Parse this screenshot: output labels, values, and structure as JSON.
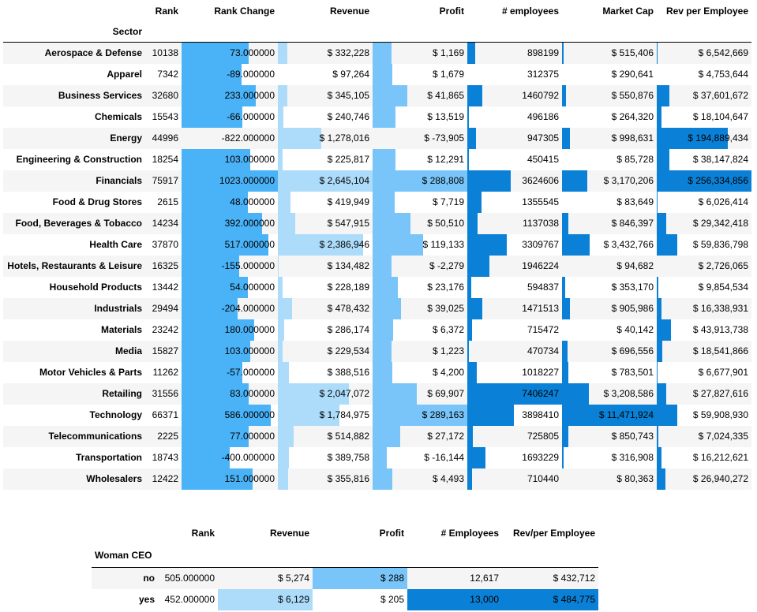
{
  "sectors_table": {
    "index_label": "Sector",
    "columns": [
      "Rank",
      "Rank Change",
      "Revenue",
      "Profit",
      "# employees",
      "Market Cap",
      "Rev per Employee"
    ],
    "bar_colors": {
      "rank_change": "#4ab2f7",
      "revenue": "#addcfb",
      "profit": "#79c5f9",
      "employees": "#0a81d6",
      "market_cap": "#0a81d6",
      "rev_per_employee": "#0a81d6"
    },
    "rows": [
      {
        "sector": "Aerospace & Defense",
        "rank": "10138",
        "rank_change": "73.000000",
        "revenue": "$ 332,228",
        "profit": "$ 1,169",
        "employees": "898199",
        "market_cap": "$ 515,406",
        "rev_per_employee": "$ 6,542,669",
        "bars": {
          "rank_change": 0.7,
          "revenue": 0.1,
          "profit": 0.2,
          "employees": 0.08,
          "market_cap": 0.02,
          "rev_per_employee": 0.01
        }
      },
      {
        "sector": "Apparel",
        "rank": "7342",
        "rank_change": "-89.000000",
        "revenue": "$ 97,264",
        "profit": "$ 1,679",
        "employees": "312375",
        "market_cap": "$ 290,641",
        "rev_per_employee": "$ 4,753,644",
        "bars": {
          "rank_change": 0.62,
          "revenue": 0.0,
          "profit": 0.21,
          "employees": 0.0,
          "market_cap": 0.0,
          "rev_per_employee": 0.0
        }
      },
      {
        "sector": "Business Services",
        "rank": "32680",
        "rank_change": "233.000000",
        "revenue": "$ 345,105",
        "profit": "$ 41,865",
        "employees": "1460792",
        "market_cap": "$ 550,876",
        "rev_per_employee": "$ 37,601,672",
        "bars": {
          "rank_change": 0.77,
          "revenue": 0.1,
          "profit": 0.37,
          "employees": 0.16,
          "market_cap": 0.04,
          "rev_per_employee": 0.13
        }
      },
      {
        "sector": "Chemicals",
        "rank": "15543",
        "rank_change": "-66.000000",
        "revenue": "$ 240,746",
        "profit": "$ 13,519",
        "employees": "496186",
        "market_cap": "$ 264,320",
        "rev_per_employee": "$ 18,104,647",
        "bars": {
          "rank_change": 0.63,
          "revenue": 0.06,
          "profit": 0.24,
          "employees": 0.02,
          "market_cap": 0.0,
          "rev_per_employee": 0.05
        }
      },
      {
        "sector": "Energy",
        "rank": "44996",
        "rank_change": "-822.000000",
        "revenue": "$ 1,278,016",
        "profit": "$ -73,905",
        "employees": "947305",
        "market_cap": "$ 998,631",
        "rev_per_employee": "$ 194,889,434",
        "bars": {
          "rank_change": 0.0,
          "revenue": 0.46,
          "profit": 0.0,
          "employees": 0.09,
          "market_cap": 0.08,
          "rev_per_employee": 0.75
        }
      },
      {
        "sector": "Engineering & Construction",
        "rank": "18254",
        "rank_change": "103.000000",
        "revenue": "$ 225,817",
        "profit": "$ 12,291",
        "employees": "450415",
        "market_cap": "$ 85,728",
        "rev_per_employee": "$ 38,147,824",
        "bars": {
          "rank_change": 0.71,
          "revenue": 0.05,
          "profit": 0.24,
          "employees": 0.02,
          "market_cap": 0.0,
          "rev_per_employee": 0.13
        }
      },
      {
        "sector": "Financials",
        "rank": "75917",
        "rank_change": "1023.000000",
        "revenue": "$ 2,645,104",
        "profit": "$ 288,808",
        "employees": "3624606",
        "market_cap": "$ 3,170,206",
        "rev_per_employee": "$ 256,334,856",
        "bars": {
          "rank_change": 1.0,
          "revenue": 1.0,
          "profit": 1.0,
          "employees": 0.46,
          "market_cap": 0.27,
          "rev_per_employee": 1.0
        }
      },
      {
        "sector": "Food & Drug Stores",
        "rank": "2615",
        "rank_change": "48.000000",
        "revenue": "$ 419,949",
        "profit": "$ 7,719",
        "employees": "1355545",
        "market_cap": "$ 83,649",
        "rev_per_employee": "$ 6,026,414",
        "bars": {
          "rank_change": 0.69,
          "revenue": 0.13,
          "profit": 0.23,
          "employees": 0.15,
          "market_cap": 0.0,
          "rev_per_employee": 0.01
        }
      },
      {
        "sector": "Food, Beverages & Tobacco",
        "rank": "14234",
        "rank_change": "392.000000",
        "revenue": "$ 547,915",
        "profit": "$ 50,510",
        "employees": "1137038",
        "market_cap": "$ 846,397",
        "rev_per_employee": "$ 29,342,418",
        "bars": {
          "rank_change": 0.84,
          "revenue": 0.18,
          "profit": 0.4,
          "employees": 0.11,
          "market_cap": 0.07,
          "rev_per_employee": 0.1
        }
      },
      {
        "sector": "Health Care",
        "rank": "37870",
        "rank_change": "517.000000",
        "revenue": "$ 2,386,946",
        "profit": "$ 119,133",
        "employees": "3309767",
        "market_cap": "$ 3,432,766",
        "rev_per_employee": "$ 59,836,798",
        "bars": {
          "rank_change": 0.9,
          "revenue": 0.9,
          "profit": 0.53,
          "employees": 0.42,
          "market_cap": 0.29,
          "rev_per_employee": 0.22
        }
      },
      {
        "sector": "Hotels, Restaurants & Leisure",
        "rank": "16325",
        "rank_change": "-155.000000",
        "revenue": "$ 134,482",
        "profit": "$ -2,279",
        "employees": "1946224",
        "market_cap": "$ 94,682",
        "rev_per_employee": "$ 2,726,065",
        "bars": {
          "rank_change": 0.6,
          "revenue": 0.01,
          "profit": 0.2,
          "employees": 0.23,
          "market_cap": 0.0,
          "rev_per_employee": 0.0
        }
      },
      {
        "sector": "Household Products",
        "rank": "13442",
        "rank_change": "54.000000",
        "revenue": "$ 228,189",
        "profit": "$ 23,176",
        "employees": "594837",
        "market_cap": "$ 353,170",
        "rev_per_employee": "$ 9,854,534",
        "bars": {
          "rank_change": 0.69,
          "revenue": 0.05,
          "profit": 0.27,
          "employees": 0.04,
          "market_cap": 0.03,
          "rev_per_employee": 0.02
        }
      },
      {
        "sector": "Industrials",
        "rank": "29494",
        "rank_change": "-204.000000",
        "revenue": "$ 478,432",
        "profit": "$ 39,025",
        "employees": "1471513",
        "market_cap": "$ 905,986",
        "rev_per_employee": "$ 16,338,931",
        "bars": {
          "rank_change": 0.58,
          "revenue": 0.15,
          "profit": 0.3,
          "employees": 0.16,
          "market_cap": 0.08,
          "rev_per_employee": 0.05
        }
      },
      {
        "sector": "Materials",
        "rank": "23242",
        "rank_change": "180.000000",
        "revenue": "$ 286,174",
        "profit": "$ 6,372",
        "employees": "715472",
        "market_cap": "$ 40,142",
        "rev_per_employee": "$ 43,913,738",
        "bars": {
          "rank_change": 0.75,
          "revenue": 0.07,
          "profit": 0.22,
          "employees": 0.05,
          "market_cap": 0.0,
          "rev_per_employee": 0.15
        }
      },
      {
        "sector": "Media",
        "rank": "15827",
        "rank_change": "103.000000",
        "revenue": "$ 229,534",
        "profit": "$ 1,223",
        "employees": "470734",
        "market_cap": "$ 696,556",
        "rev_per_employee": "$ 18,541,866",
        "bars": {
          "rank_change": 0.71,
          "revenue": 0.05,
          "profit": 0.2,
          "employees": 0.02,
          "market_cap": 0.06,
          "rev_per_employee": 0.06
        }
      },
      {
        "sector": "Motor Vehicles & Parts",
        "rank": "11262",
        "rank_change": "-57.000000",
        "revenue": "$ 388,516",
        "profit": "$ 4,200",
        "employees": "1018227",
        "market_cap": "$ 783,501",
        "rev_per_employee": "$ 6,677,901",
        "bars": {
          "rank_change": 0.63,
          "revenue": 0.12,
          "profit": 0.21,
          "employees": 0.1,
          "market_cap": 0.07,
          "rev_per_employee": 0.01
        }
      },
      {
        "sector": "Retailing",
        "rank": "31556",
        "rank_change": "83.000000",
        "revenue": "$ 2,047,072",
        "profit": "$ 69,907",
        "employees": "7406247",
        "market_cap": "$ 3,208,586",
        "rev_per_employee": "$ 27,827,616",
        "bars": {
          "rank_change": 0.7,
          "revenue": 0.75,
          "profit": 0.47,
          "employees": 1.0,
          "market_cap": 0.28,
          "rev_per_employee": 0.1
        }
      },
      {
        "sector": "Technology",
        "rank": "66371",
        "rank_change": "586.000000",
        "revenue": "$ 1,784,975",
        "profit": "$ 289,163",
        "employees": "3898410",
        "market_cap": "$ 11,471,924",
        "rev_per_employee": "$ 59,908,930",
        "bars": {
          "rank_change": 0.93,
          "revenue": 0.65,
          "profit": 1.0,
          "employees": 0.49,
          "market_cap": 1.0,
          "rev_per_employee": 0.22
        }
      },
      {
        "sector": "Telecommunications",
        "rank": "2225",
        "rank_change": "77.000000",
        "revenue": "$ 514,882",
        "profit": "$ 27,172",
        "employees": "725805",
        "market_cap": "$ 850,743",
        "rev_per_employee": "$ 7,024,335",
        "bars": {
          "rank_change": 0.7,
          "revenue": 0.17,
          "profit": 0.29,
          "employees": 0.06,
          "market_cap": 0.07,
          "rev_per_employee": 0.02
        }
      },
      {
        "sector": "Transportation",
        "rank": "18743",
        "rank_change": "-400.000000",
        "revenue": "$ 389,758",
        "profit": "$ -16,144",
        "employees": "1693229",
        "market_cap": "$ 316,908",
        "rev_per_employee": "$ 16,212,621",
        "bars": {
          "rank_change": 0.5,
          "revenue": 0.12,
          "profit": 0.15,
          "employees": 0.19,
          "market_cap": 0.02,
          "rev_per_employee": 0.05
        }
      },
      {
        "sector": "Wholesalers",
        "rank": "12422",
        "rank_change": "151.000000",
        "revenue": "$ 355,816",
        "profit": "$ 4,493",
        "employees": "710440",
        "market_cap": "$ 80,363",
        "rev_per_employee": "$ 26,940,272",
        "bars": {
          "rank_change": 0.74,
          "revenue": 0.11,
          "profit": 0.21,
          "employees": 0.05,
          "market_cap": 0.0,
          "rev_per_employee": 0.09
        }
      }
    ]
  },
  "ceo_table": {
    "index_label": "Woman CEO",
    "columns": [
      "Rank",
      "Revenue",
      "Profit",
      "# Employees",
      "Rev/per Employee"
    ],
    "bar_colors": {
      "revenue": "#addcfb",
      "profit": "#79c5f9",
      "employees": "#0a81d6",
      "rev_per_employee": "#0a81d6"
    },
    "rows": [
      {
        "label": "no",
        "rank": "505.000000",
        "revenue": "$ 5,274",
        "profit": "$ 288",
        "employees": "12,617",
        "rev_per_employee": "$ 432,712",
        "bars": {
          "revenue": 0.0,
          "profit": 1.0,
          "employees": 0.0,
          "rev_per_employee": 0.0
        }
      },
      {
        "label": "yes",
        "rank": "452.000000",
        "revenue": "$ 6,129",
        "profit": "$ 205",
        "employees": "13,000",
        "rev_per_employee": "$ 484,775",
        "bars": {
          "revenue": 1.0,
          "profit": 0.0,
          "employees": 1.0,
          "rev_per_employee": 1.0
        }
      }
    ]
  }
}
